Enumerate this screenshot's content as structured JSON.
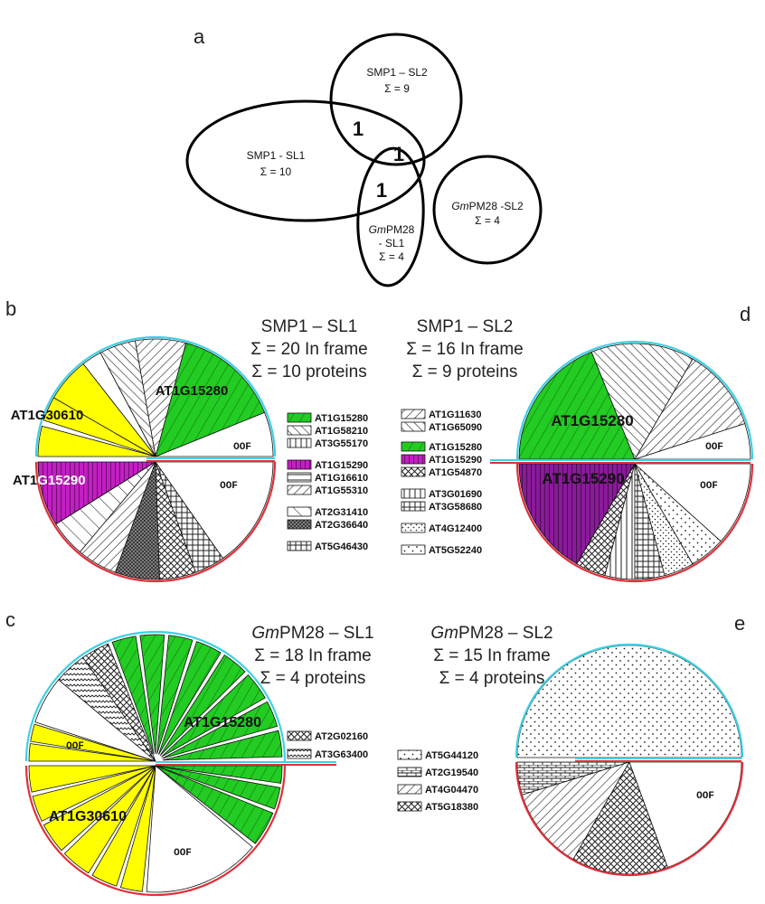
{
  "panels": {
    "a": "a",
    "b": "b",
    "c": "c",
    "d": "d",
    "e": "e"
  },
  "venn": {
    "smp1_sl2": {
      "name": "SMP1 – SL2",
      "sum": "Σ = 9"
    },
    "smp1_sl1": {
      "name": "SMP1 - SL1",
      "sum": "Σ = 10"
    },
    "gm_sl1": {
      "name_italic": "Gm",
      "name_rest": "PM28",
      "line2": "- SL1",
      "sum": "Σ = 4"
    },
    "gm_sl2": {
      "name_italic": "Gm",
      "name_rest": "PM28 -SL2",
      "sum": "Σ = 4"
    },
    "overlaps": [
      "1",
      "1",
      "1"
    ]
  },
  "pie_b": {
    "title": "SMP1 – SL1",
    "line2": "Σ = 20 In frame",
    "line3": "Σ = 10 proteins",
    "labels": {
      "green": "AT1G15280",
      "yellow": "AT1G30610",
      "magenta_a": "AT1",
      "magenta_b": "G15290",
      "oof_top": "OOF",
      "oof_bottom": "OOF"
    }
  },
  "legend_b": [
    "AT1G15280",
    "AT1G58210",
    "AT3G55170",
    "AT1G15290",
    "AT1G16610",
    "AT1G55310",
    "AT2G31410",
    "AT2G36640",
    "AT5G46430"
  ],
  "pie_d": {
    "title": "SMP1 – SL2",
    "line2": "Σ = 16 In frame",
    "line3": "Σ = 9 proteins",
    "labels": {
      "green": "AT1G15280",
      "magenta": "AT1G15290",
      "oof_top": "OOF",
      "oof_bottom": "OOF"
    }
  },
  "legend_d": [
    "AT1G11630",
    "AT1G65090",
    "AT1G15280",
    "AT1G15290",
    "AT1G54870",
    "AT3G01690",
    "AT3G58680",
    "AT4G12400",
    "AT5G52240"
  ],
  "pie_c": {
    "title_italic": "Gm",
    "title_rest": "PM28 – SL1",
    "line2": "Σ = 18 In frame",
    "line3": "Σ = 4 proteins",
    "labels": {
      "green": "AT1G15280",
      "yellow": "AT1G30610",
      "oof_top": "OOF",
      "oof_bottom": "OOF"
    }
  },
  "legend_c": [
    "AT2G02160",
    "AT3G63400"
  ],
  "pie_e": {
    "title_italic": "Gm",
    "title_rest": "PM28 – SL2",
    "line2": "Σ = 15 In frame",
    "line3": "Σ = 4 proteins",
    "labels": {
      "oof_bottom": "OOF"
    }
  },
  "legend_e": [
    "AT5G44120",
    "AT2G19540",
    "AT4G04470",
    "AT5G18380"
  ],
  "colors": {
    "green": "#22cc22",
    "yellow": "#ffff00",
    "magenta": "#c21fc2",
    "purple": "#8a1a9a",
    "cyan_rim": "#3fd0e6",
    "red_rim": "#e0303a"
  }
}
